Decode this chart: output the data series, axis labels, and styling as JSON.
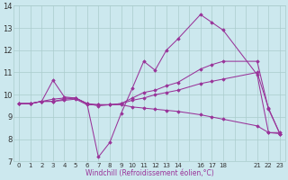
{
  "xlabel": "Windchill (Refroidissement éolien,°C)",
  "xlim": [
    -0.5,
    23.5
  ],
  "ylim": [
    7,
    14
  ],
  "xticks": [
    0,
    1,
    2,
    3,
    4,
    5,
    6,
    7,
    8,
    9,
    10,
    11,
    12,
    13,
    14,
    16,
    17,
    18,
    21,
    22,
    23
  ],
  "yticks": [
    7,
    8,
    9,
    10,
    11,
    12,
    13,
    14
  ],
  "bg_color": "#cce8ee",
  "line_color": "#993399",
  "grid_color": "#aacccc",
  "lines": [
    {
      "x": [
        0,
        1,
        2,
        3,
        4,
        5,
        6,
        7,
        8,
        9,
        10,
        11,
        12,
        13,
        14,
        16,
        17,
        18,
        21,
        22,
        23
      ],
      "y": [
        9.6,
        9.6,
        9.7,
        9.8,
        9.85,
        9.85,
        9.6,
        7.2,
        7.85,
        9.15,
        10.3,
        11.5,
        11.1,
        12.0,
        12.5,
        13.6,
        13.25,
        12.9,
        10.9,
        8.3,
        8.3
      ]
    },
    {
      "x": [
        0,
        1,
        2,
        3,
        4,
        5,
        6,
        7,
        8,
        9,
        10,
        11,
        12,
        13,
        14,
        16,
        17,
        18,
        21,
        22,
        23
      ],
      "y": [
        9.6,
        9.6,
        9.7,
        10.65,
        9.9,
        9.85,
        9.6,
        9.5,
        9.55,
        9.6,
        9.75,
        9.85,
        10.0,
        10.1,
        10.2,
        10.5,
        10.6,
        10.7,
        11.0,
        9.4,
        8.25
      ]
    },
    {
      "x": [
        0,
        1,
        2,
        3,
        4,
        5,
        6,
        7,
        8,
        9,
        10,
        11,
        12,
        13,
        14,
        16,
        17,
        18,
        21,
        22,
        23
      ],
      "y": [
        9.6,
        9.6,
        9.7,
        9.7,
        9.8,
        9.85,
        9.6,
        9.55,
        9.55,
        9.6,
        9.85,
        10.1,
        10.2,
        10.4,
        10.55,
        11.15,
        11.35,
        11.5,
        11.5,
        9.35,
        8.25
      ]
    },
    {
      "x": [
        0,
        1,
        2,
        3,
        4,
        5,
        6,
        7,
        8,
        9,
        10,
        11,
        12,
        13,
        14,
        16,
        17,
        18,
        21,
        22,
        23
      ],
      "y": [
        9.6,
        9.6,
        9.7,
        9.7,
        9.75,
        9.8,
        9.55,
        9.55,
        9.55,
        9.55,
        9.45,
        9.4,
        9.35,
        9.3,
        9.25,
        9.1,
        9.0,
        8.9,
        8.6,
        8.3,
        8.25
      ]
    }
  ]
}
